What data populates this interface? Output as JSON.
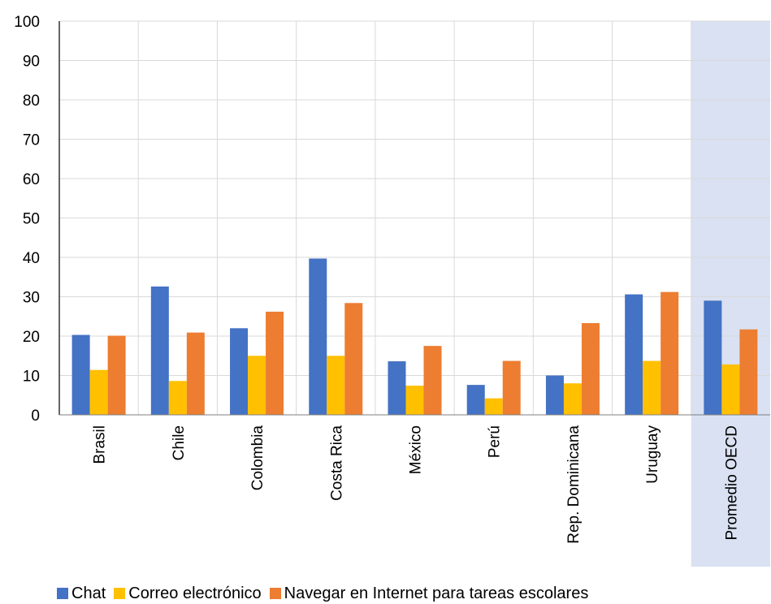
{
  "chart_data": {
    "type": "bar",
    "categories": [
      "Brasil",
      "Chile",
      "Colombia",
      "Costa Rica",
      "México",
      "Perú",
      "Rep. Dominicana",
      "Uruguay",
      "Promedio OECD"
    ],
    "series": [
      {
        "name": "Chat",
        "color": "#4472C4",
        "values": [
          20.3,
          32.6,
          22.0,
          39.7,
          13.6,
          7.6,
          10.0,
          30.6,
          29.0
        ]
      },
      {
        "name": "Correo electrónico",
        "color": "#FFC000",
        "values": [
          11.4,
          8.6,
          15.0,
          15.0,
          7.4,
          4.2,
          8.0,
          13.7,
          12.8
        ]
      },
      {
        "name": "Navegar en Internet para tareas escolares",
        "color": "#ED7D31",
        "values": [
          20.1,
          20.9,
          26.2,
          28.4,
          17.5,
          13.7,
          23.3,
          31.2,
          21.7
        ]
      }
    ],
    "highlighted_category": "Promedio OECD",
    "highlight_color": "#D9E1F2",
    "ylim": [
      0,
      100
    ],
    "yticks": [
      0,
      10,
      20,
      30,
      40,
      50,
      60,
      70,
      80,
      90,
      100
    ],
    "xlabel": "",
    "ylabel": "",
    "title": "",
    "grid": true,
    "legend_position": "bottom"
  }
}
